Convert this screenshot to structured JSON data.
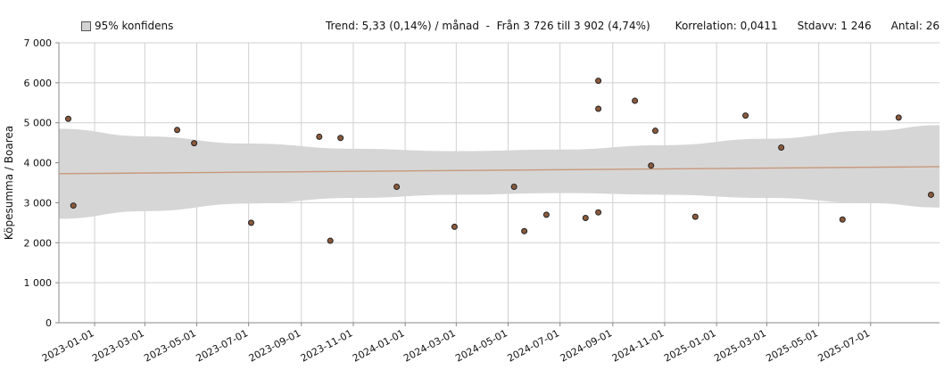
{
  "chart_data": {
    "type": "scatter",
    "ylabel": "Köpesumma / Boarea",
    "xlabel": "",
    "legend": {
      "label": "95% konfidens",
      "placement": "top-left"
    },
    "stats": {
      "trend": "Trend: 5,33 (0,14%) / månad  -  Från 3 726 till 3 902 (4,74%)",
      "korrelation": "Korrelation: 0,0411",
      "stdavv": "Stdavv: 1 246",
      "antal": "Antal: 26"
    },
    "ylim": [
      0,
      7000
    ],
    "xlim": [
      "2022-11-20",
      "2025-09-20"
    ],
    "yticks": [
      0,
      1000,
      2000,
      3000,
      4000,
      5000,
      6000,
      7000
    ],
    "ytick_labels": [
      "0",
      "1 000",
      "2 000",
      "3 000",
      "4 000",
      "5 000",
      "6 000",
      "7 000"
    ],
    "xticks": [
      "2023-01-01",
      "2023-03-01",
      "2023-05-01",
      "2023-07-01",
      "2023-09-01",
      "2023-11-01",
      "2024-01-01",
      "2024-03-01",
      "2024-05-01",
      "2024-07-01",
      "2024-09-01",
      "2024-11-01",
      "2025-01-01",
      "2025-03-01",
      "2025-05-01",
      "2025-07-01"
    ],
    "grid": true,
    "trend_line": {
      "start": {
        "x": "2022-11-20",
        "y": 3726
      },
      "end": {
        "x": "2025-09-20",
        "y": 3902
      }
    },
    "confidence_band": {
      "x": [
        "2022-11-20",
        "2023-03-01",
        "2023-07-01",
        "2023-11-01",
        "2024-03-01",
        "2024-07-01",
        "2024-11-01",
        "2025-03-01",
        "2025-07-01",
        "2025-09-20"
      ],
      "upper": [
        4850,
        4660,
        4480,
        4350,
        4290,
        4330,
        4440,
        4600,
        4800,
        4940
      ],
      "lower": [
        2600,
        2790,
        2980,
        3120,
        3200,
        3240,
        3200,
        3120,
        2990,
        2880
      ]
    },
    "points": [
      {
        "x": "2022-12-01",
        "y": 5100
      },
      {
        "x": "2022-12-07",
        "y": 2930
      },
      {
        "x": "2023-04-08",
        "y": 4820
      },
      {
        "x": "2023-04-28",
        "y": 4490
      },
      {
        "x": "2023-07-04",
        "y": 2500
      },
      {
        "x": "2023-09-22",
        "y": 4650
      },
      {
        "x": "2023-10-05",
        "y": 2050
      },
      {
        "x": "2023-10-17",
        "y": 4620
      },
      {
        "x": "2023-12-22",
        "y": 3400
      },
      {
        "x": "2024-02-28",
        "y": 2400
      },
      {
        "x": "2024-05-08",
        "y": 3400
      },
      {
        "x": "2024-05-20",
        "y": 2290
      },
      {
        "x": "2024-06-15",
        "y": 2700
      },
      {
        "x": "2024-07-31",
        "y": 2620
      },
      {
        "x": "2024-08-15",
        "y": 6050
      },
      {
        "x": "2024-08-15",
        "y": 5350
      },
      {
        "x": "2024-08-15",
        "y": 2760
      },
      {
        "x": "2024-09-27",
        "y": 5550
      },
      {
        "x": "2024-10-16",
        "y": 3930
      },
      {
        "x": "2024-10-21",
        "y": 4800
      },
      {
        "x": "2024-12-07",
        "y": 2650
      },
      {
        "x": "2025-02-04",
        "y": 5180
      },
      {
        "x": "2025-03-18",
        "y": 4380
      },
      {
        "x": "2025-05-29",
        "y": 2580
      },
      {
        "x": "2025-08-03",
        "y": 5130
      },
      {
        "x": "2025-09-10",
        "y": 3200
      }
    ]
  }
}
